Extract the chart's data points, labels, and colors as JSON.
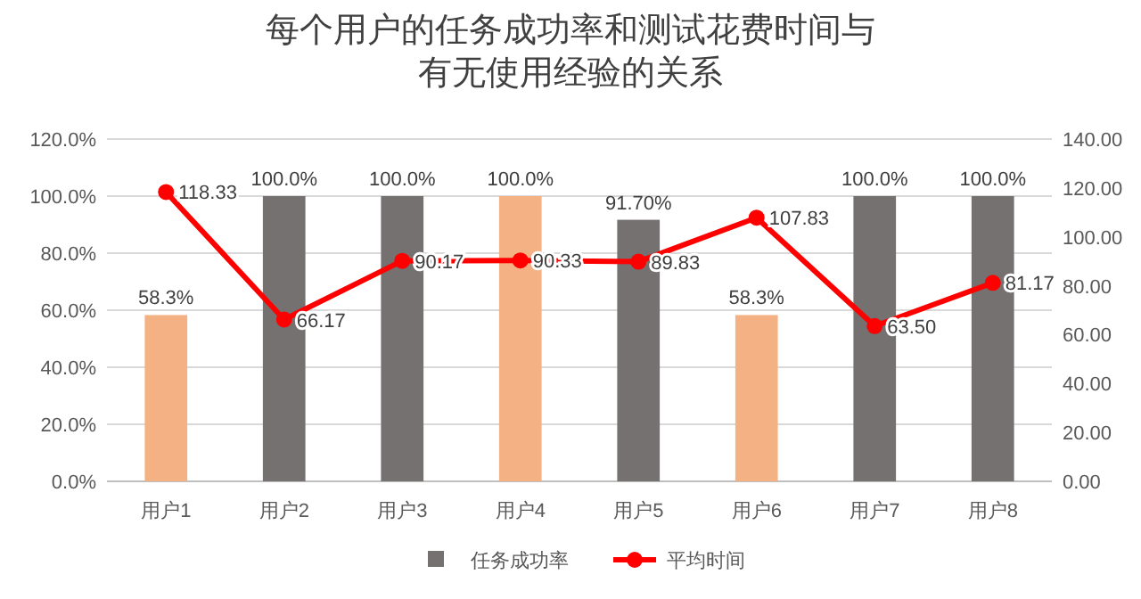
{
  "chart_data": {
    "type": "bar",
    "title": "每个用户的任务成功率和测试花费时间与有无使用经验的关系",
    "categories": [
      "用户1",
      "用户2",
      "用户3",
      "用户4",
      "用户5",
      "用户6",
      "用户7",
      "用户8"
    ],
    "series": [
      {
        "name": "任务成功率",
        "color": "#767171",
        "colors": [
          "#f4b183",
          "#767171",
          "#767171",
          "#f4b183",
          "#767171",
          "#f4b183",
          "#767171",
          "#767171"
        ],
        "values": [
          58.3,
          100,
          100,
          100,
          91.7,
          58.3,
          100,
          100
        ],
        "value_labels": [
          "58.3%",
          "100.0%",
          "100.0%",
          "100.0%",
          "91.70%",
          "58.3%",
          "100.0%",
          "100.0%"
        ]
      },
      {
        "name": "平均时间",
        "type": "line",
        "axis": "y2",
        "color": "#ff0000",
        "marker": "circle",
        "values": [
          118.33,
          66.17,
          90.17,
          90.33,
          89.83,
          107.83,
          63.5,
          81.17
        ],
        "value_labels": [
          "118.33",
          "66.17",
          "90.17",
          "90.33",
          "89.83",
          "107.83",
          "63.50",
          "81.17"
        ]
      }
    ],
    "ylim": [
      0,
      120
    ],
    "yticks": [
      {
        "value": 0,
        "label": "0.0%"
      },
      {
        "value": 20,
        "label": "20.0%"
      },
      {
        "value": 40,
        "label": "40.0%"
      },
      {
        "value": 60,
        "label": "60.0%"
      },
      {
        "value": 80,
        "label": "80.0%"
      },
      {
        "value": 100,
        "label": "100.0%"
      },
      {
        "value": 120,
        "label": "120.0%"
      }
    ],
    "y2lim": [
      0,
      140
    ],
    "y2ticks": [
      {
        "value": 0,
        "label": "0.00"
      },
      {
        "value": 20,
        "label": "20.00"
      },
      {
        "value": 40,
        "label": "40.00"
      },
      {
        "value": 60,
        "label": "60.00"
      },
      {
        "value": 80,
        "label": "80.00"
      },
      {
        "value": 100,
        "label": "100.00"
      },
      {
        "value": 120,
        "label": "120.00"
      },
      {
        "value": 140,
        "label": "140.00"
      }
    ],
    "grid": "y",
    "legend": "bottom"
  }
}
